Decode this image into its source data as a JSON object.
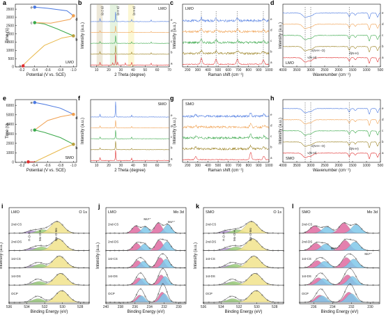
{
  "chart_data": [
    {
      "id": "a",
      "type": "line",
      "xlabel": "Potential (V vs. SCE)",
      "ylabel": "Time (s)",
      "xticks": [
        "-0.2",
        "-0.4",
        "-0.6",
        "-0.8",
        "-1.0"
      ],
      "yticks": [
        "0",
        "500",
        "1000",
        "1500",
        "2000",
        "2500",
        "3000",
        "3500"
      ],
      "xlim": [
        -0.1,
        -1.05
      ],
      "ylim": [
        0,
        3800
      ],
      "tag": "LMO",
      "series": [
        {
          "color": "#e03030",
          "points": [
            [
              -0.22,
              60
            ],
            [
              -0.24,
              180
            ]
          ]
        },
        {
          "color": "#e8b84a",
          "points": [
            [
              -0.24,
              180
            ],
            [
              -0.33,
              520
            ],
            [
              -0.55,
              1300
            ],
            [
              -0.82,
              1750
            ],
            [
              -1.0,
              1880
            ]
          ]
        },
        {
          "color": "#3aa84a",
          "points": [
            [
              -1.0,
              1880
            ],
            [
              -0.75,
              2300
            ],
            [
              -0.55,
              2600
            ],
            [
              -0.4,
              2680
            ]
          ]
        },
        {
          "color": "#f0a050",
          "points": [
            [
              -0.4,
              2680
            ],
            [
              -0.65,
              2650
            ],
            [
              -0.95,
              2880
            ],
            [
              -1.0,
              3100
            ]
          ]
        },
        {
          "color": "#4a78e0",
          "points": [
            [
              -1.0,
              3100
            ],
            [
              -0.9,
              3400
            ],
            [
              -0.6,
              3550
            ],
            [
              -0.4,
              3620
            ]
          ]
        }
      ],
      "markers": [
        {
          "label": "a",
          "x": -0.22,
          "y": 60,
          "color": "#e03030"
        },
        {
          "label": "b",
          "x": -1.0,
          "y": 1880,
          "color": "#b8a040"
        },
        {
          "label": "c",
          "x": -0.4,
          "y": 2680,
          "color": "#3aa84a"
        },
        {
          "label": "d",
          "x": -1.0,
          "y": 3100,
          "color": "#f0a050"
        },
        {
          "label": "e",
          "x": -0.4,
          "y": 3620,
          "color": "#4a78e0"
        }
      ]
    },
    {
      "id": "b",
      "type": "line",
      "xlabel": "2 Theta (degree)",
      "ylabel": "Intensity (a.u.)",
      "xticks": [
        "10",
        "20",
        "30",
        "40",
        "50",
        "60",
        "70"
      ],
      "xlim": [
        5,
        70
      ],
      "tag": "LMO",
      "annotations": [
        "(0 2 0)",
        "(0 4 0)",
        "(0 6 0)"
      ],
      "highlights": [
        {
          "from": 10,
          "to": 15,
          "color": "#e8e2d0"
        },
        {
          "from": 21,
          "to": 27.5,
          "color": "#dff0d8"
        },
        {
          "from": 36,
          "to": 41,
          "color": "#fbf5c8"
        }
      ],
      "series": [
        {
          "name": "e",
          "color": "#4a78e0",
          "peaks": [
            [
              12.8,
              0.3
            ],
            [
              25.7,
              1.0
            ],
            [
              38.9,
              0.2
            ],
            [
              55,
              0.15
            ]
          ]
        },
        {
          "name": "d",
          "color": "#f0a050",
          "peaks": [
            [
              12.8,
              0.2
            ],
            [
              25.7,
              0.7
            ],
            [
              38.9,
              0.15
            ],
            [
              55,
              0.12
            ]
          ]
        },
        {
          "name": "c",
          "color": "#3aa84a",
          "peaks": [
            [
              12.8,
              0.2
            ],
            [
              25.7,
              0.8
            ],
            [
              38.9,
              0.15
            ],
            [
              55,
              0.12
            ]
          ]
        },
        {
          "name": "b",
          "color": "#9a8020",
          "peaks": [
            [
              12.8,
              0.25
            ],
            [
              25.7,
              0.9
            ],
            [
              38.9,
              0.2
            ],
            [
              55,
              0.15
            ]
          ]
        },
        {
          "name": "a",
          "color": "#e03030",
          "peaks": [
            [
              12.8,
              0.3
            ],
            [
              23.3,
              0.25
            ],
            [
              25.7,
              1.2
            ],
            [
              27.3,
              0.3
            ],
            [
              33.7,
              0.2
            ],
            [
              38.9,
              0.3
            ],
            [
              55,
              0.2
            ]
          ]
        }
      ]
    },
    {
      "id": "c",
      "type": "line",
      "xlabel": "Raman shift (cm⁻¹)",
      "ylabel": "Intensity (a.u.)",
      "xticks": [
        "200",
        "300",
        "400",
        "500",
        "600",
        "700",
        "800",
        "900",
        "1000"
      ],
      "xlim": [
        150,
        1000
      ],
      "tag": "LMO",
      "dashed": [
        335,
        480,
        690,
        945
      ],
      "series": [
        {
          "name": "e",
          "color": "#4a78e0"
        },
        {
          "name": "d",
          "color": "#f0a050"
        },
        {
          "name": "c",
          "color": "#3aa84a"
        },
        {
          "name": "b",
          "color": "#9a8020"
        },
        {
          "name": "a",
          "color": "#e03030"
        }
      ]
    },
    {
      "id": "d",
      "type": "line",
      "xlabel": "Wavenumber (cm⁻¹)",
      "ylabel": "",
      "xticks": [
        "4000",
        "3500",
        "3000",
        "2500",
        "2000",
        "1500",
        "1000",
        "500"
      ],
      "xlim": [
        4000,
        500
      ],
      "tag": "LMO",
      "dashed": [
        3200,
        3000,
        1620
      ],
      "labels": [
        "ν(N-H)",
        "ν(N-H··O)",
        "δ(N-H)"
      ],
      "series": [
        {
          "name": "e",
          "color": "#4a78e0"
        },
        {
          "name": "d",
          "color": "#f0a050"
        },
        {
          "name": "c",
          "color": "#3aa84a"
        },
        {
          "name": "b",
          "color": "#9a8020"
        },
        {
          "name": "a",
          "color": "#e03030"
        }
      ]
    },
    {
      "id": "e",
      "type": "line",
      "xlabel": "Potential (V vs. SCE)",
      "ylabel": "Time (s)",
      "xticks": [
        "-0.2",
        "-0.4",
        "-0.6",
        "-0.8",
        "-1.0"
      ],
      "yticks": [
        "0",
        "1000",
        "2000",
        "3000",
        "4000",
        "5000",
        "6000"
      ],
      "xlim": [
        -0.1,
        -1.05
      ],
      "ylim": [
        0,
        6600
      ],
      "tag": "SMO",
      "series": [
        {
          "color": "#e03030",
          "points": [
            [
              -0.3,
              50
            ],
            [
              -0.4,
              50
            ]
          ]
        },
        {
          "color": "#e8b84a",
          "points": [
            [
              -0.4,
              50
            ],
            [
              -0.6,
              700
            ],
            [
              -0.85,
              1500
            ],
            [
              -1.0,
              1900
            ]
          ]
        },
        {
          "color": "#3aa84a",
          "points": [
            [
              -1.0,
              1900
            ],
            [
              -0.8,
              2600
            ],
            [
              -0.55,
              3150
            ],
            [
              -0.4,
              3400
            ]
          ]
        },
        {
          "color": "#f0a050",
          "points": [
            [
              -0.4,
              3400
            ],
            [
              -0.6,
              4400
            ],
            [
              -0.8,
              4800
            ],
            [
              -1.0,
              5050
            ]
          ]
        },
        {
          "color": "#4a78e0",
          "points": [
            [
              -1.0,
              5050
            ],
            [
              -0.8,
              5700
            ],
            [
              -0.55,
              6100
            ],
            [
              -0.4,
              6300
            ]
          ]
        }
      ],
      "markers": [
        {
          "label": "a",
          "x": -0.3,
          "y": 50,
          "color": "#e03030"
        },
        {
          "label": "b",
          "x": -1.0,
          "y": 1900,
          "color": "#b8a040"
        },
        {
          "label": "c",
          "x": -0.4,
          "y": 3400,
          "color": "#3aa84a"
        },
        {
          "label": "d",
          "x": -1.0,
          "y": 5050,
          "color": "#f0a050"
        },
        {
          "label": "e",
          "x": -0.4,
          "y": 6300,
          "color": "#4a78e0"
        }
      ]
    },
    {
      "id": "f",
      "type": "line",
      "xlabel": "2 Theta (degree)",
      "ylabel": "Intensity (a.u.)",
      "xticks": [
        "10",
        "20",
        "30",
        "40",
        "50",
        "60",
        "70"
      ],
      "xlim": [
        5,
        70
      ],
      "tag": "SMO",
      "series": [
        {
          "name": "e",
          "color": "#4a78e0",
          "peaks": [
            [
              12.8,
              0.3
            ],
            [
              25.7,
              1.6
            ],
            [
              38.9,
              0.2
            ]
          ]
        },
        {
          "name": "d",
          "color": "#f0a050",
          "peaks": [
            [
              12.8,
              0.2
            ],
            [
              25.7,
              0.8
            ],
            [
              38.9,
              0.15
            ]
          ]
        },
        {
          "name": "c",
          "color": "#3aa84a",
          "peaks": [
            [
              12.8,
              0.2
            ],
            [
              25.7,
              0.9
            ],
            [
              38.9,
              0.15
            ]
          ]
        },
        {
          "name": "b",
          "color": "#9a8020",
          "peaks": [
            [
              12.8,
              0.2
            ],
            [
              25.7,
              0.9
            ],
            [
              38.9,
              0.15
            ]
          ]
        },
        {
          "name": "a",
          "color": "#e03030",
          "peaks": [
            [
              12.8,
              0.3
            ],
            [
              25.7,
              1.1
            ],
            [
              38.9,
              0.25
            ]
          ]
        }
      ]
    },
    {
      "id": "g",
      "type": "line",
      "xlabel": "Raman shift (cm⁻¹)",
      "ylabel": "Intensity (a.u.)",
      "xticks": [
        "200",
        "300",
        "400",
        "500",
        "600",
        "700",
        "800",
        "900",
        "1000"
      ],
      "xlim": [
        150,
        1000
      ],
      "tag": "SMO",
      "series": [
        {
          "name": "e",
          "color": "#4a78e0"
        },
        {
          "name": "d",
          "color": "#f0a050"
        },
        {
          "name": "c",
          "color": "#3aa84a"
        },
        {
          "name": "b",
          "color": "#9a8020"
        },
        {
          "name": "a",
          "color": "#e03030"
        }
      ]
    },
    {
      "id": "h",
      "type": "line",
      "xlabel": "Wavenumber (cm⁻¹)",
      "ylabel": "",
      "xticks": [
        "4000",
        "3500",
        "3000",
        "2500",
        "2000",
        "1500",
        "1000",
        "500"
      ],
      "xlim": [
        4000,
        500
      ],
      "tag": "SMO",
      "dashed": [
        3200,
        3000,
        1620
      ],
      "labels": [
        "ν(N-H)",
        "ν(N-H··O)",
        "δ(N-H)"
      ],
      "series": [
        {
          "name": "e",
          "color": "#4a78e0"
        },
        {
          "name": "d",
          "color": "#f0a050"
        },
        {
          "name": "c",
          "color": "#3aa84a"
        },
        {
          "name": "b",
          "color": "#9a8020"
        },
        {
          "name": "a",
          "color": "#e03030"
        }
      ]
    },
    {
      "id": "i",
      "type": "line",
      "tag": "LMO",
      "corner": "O 1s",
      "xlabel": "Binding Energy (eV)",
      "ylabel": "Intensity (a.u.)",
      "xticks": [
        "536",
        "534",
        "532",
        "530",
        "528"
      ],
      "xlim": [
        536,
        527
      ],
      "rows": [
        "2nd-CS",
        "2nd-DS",
        "1st-CS",
        "1st-DS",
        "OCP"
      ],
      "labels": [
        "H-O-H",
        "Mo-O-H",
        "Mo-O-Mo"
      ]
    },
    {
      "id": "j",
      "type": "line",
      "tag": "LMO",
      "corner": "Mo 3d",
      "xlabel": "Binding Energy (eV)",
      "ylabel": "Intensity (a.u.)",
      "xticks": [
        "240",
        "238",
        "236",
        "234",
        "232",
        "230"
      ],
      "xlim": [
        240,
        229
      ],
      "rows": [
        "2nd-CS",
        "2nd-DS",
        "1st-CS",
        "1st-DS",
        "OCP"
      ],
      "labels": [
        "Mo⁶⁺",
        "Mo⁵⁺"
      ]
    },
    {
      "id": "k",
      "type": "line",
      "tag": "SMO",
      "corner": "O 1s",
      "xlabel": "Binding Energy (eV)",
      "ylabel": "Intensity (a.u.)",
      "xticks": [
        "536",
        "534",
        "532",
        "530",
        "528"
      ],
      "xlim": [
        536,
        527
      ],
      "rows": [
        "2nd-CS",
        "2nd-DS",
        "1st-CS",
        "1st-DS",
        "OCP"
      ],
      "labels": [
        "H-O-H",
        "Mo-O-H",
        "Mo-O-Mo"
      ]
    },
    {
      "id": "l",
      "type": "line",
      "tag": "SMO",
      "corner": "Mo 3d",
      "xlabel": "Binding Energy (eV)",
      "ylabel": "",
      "xticks": [
        "236",
        "234",
        "232",
        "230"
      ],
      "xlim": [
        237.5,
        229
      ],
      "rows": [
        "2nd-CS",
        "2nd-DS",
        "1st-CS",
        "1st-DS",
        "OCP"
      ],
      "labels": [
        "Mo⁶⁺",
        "Mo⁵⁺"
      ]
    }
  ],
  "curve_letters": [
    "e",
    "d",
    "c",
    "b",
    "a"
  ]
}
